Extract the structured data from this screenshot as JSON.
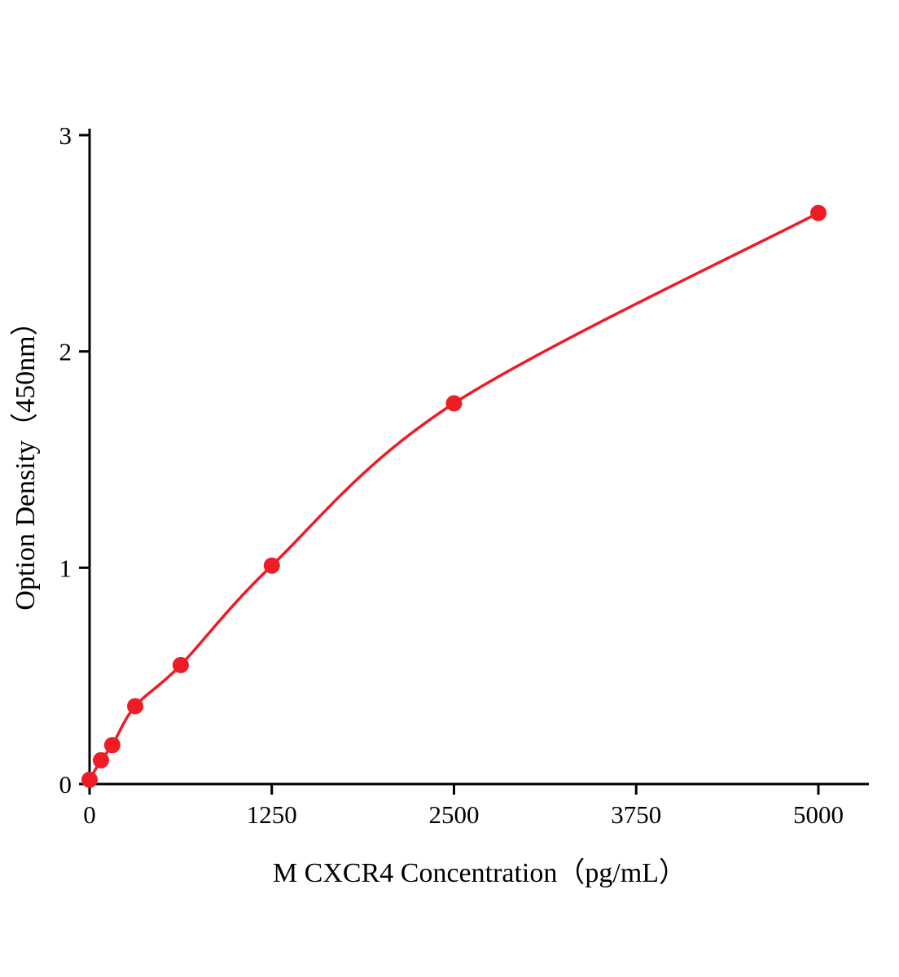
{
  "chart_data": {
    "type": "line",
    "title": "",
    "xlabel": "M CXCR4 Concentration（pg/mL）",
    "ylabel": "Option Density（450nm）",
    "x": [
      0,
      78,
      156,
      313,
      625,
      1250,
      2500,
      5000
    ],
    "y": [
      0.02,
      0.11,
      0.18,
      0.36,
      0.55,
      1.01,
      1.76,
      2.64
    ],
    "x_ticks": [
      0,
      1250,
      2500,
      3750,
      5000
    ],
    "y_ticks": [
      0,
      1,
      2,
      3
    ],
    "xlim": [
      0,
      5350
    ],
    "ylim": [
      0,
      3
    ],
    "color": "#ee1c25",
    "marker": "filled-circle",
    "curve_style": "smooth saturating fit through data points",
    "legend": "none",
    "grid": false
  }
}
